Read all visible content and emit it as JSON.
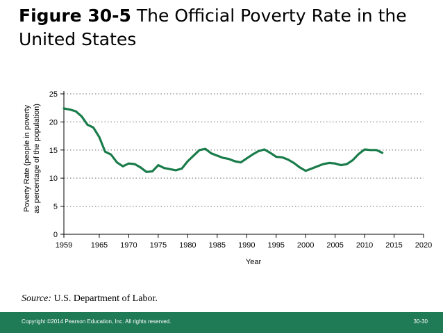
{
  "title": {
    "figure_label": "Figure 30-5",
    "text": "The Official Poverty Rate in the United States"
  },
  "source": {
    "label": "Source:",
    "text": " U.S. Department of Labor."
  },
  "footer": {
    "copyright": "Copyright ©2014 Pearson Education, Inc. All rights reserved.",
    "page": "30-30"
  },
  "colors": {
    "line": "#1a7c4a",
    "grid": "#888888",
    "footer_bg": "#1f7a56"
  },
  "chart_data": {
    "type": "line",
    "title": "The Official Poverty Rate in the United States",
    "xlabel": "Year",
    "ylabel_lines": [
      "Poverty Rate (people in poverty",
      "as percentage of the population)"
    ],
    "xlim": [
      1959,
      2020
    ],
    "ylim": [
      0,
      25
    ],
    "x_ticks": [
      1959,
      1965,
      1970,
      1975,
      1980,
      1985,
      1990,
      1995,
      2000,
      2005,
      2010,
      2015,
      2020
    ],
    "y_ticks": [
      0,
      5,
      10,
      15,
      20,
      25
    ],
    "grid": "horizontal-dotted",
    "series": [
      {
        "name": "Official Poverty Rate",
        "x": [
          1959,
          1960,
          1961,
          1962,
          1963,
          1964,
          1965,
          1966,
          1967,
          1968,
          1969,
          1970,
          1971,
          1972,
          1973,
          1974,
          1975,
          1976,
          1977,
          1978,
          1979,
          1980,
          1981,
          1982,
          1983,
          1984,
          1985,
          1986,
          1987,
          1988,
          1989,
          1990,
          1991,
          1992,
          1993,
          1994,
          1995,
          1996,
          1997,
          1998,
          1999,
          2000,
          2001,
          2002,
          2003,
          2004,
          2005,
          2006,
          2007,
          2008,
          2009,
          2010,
          2011,
          2012,
          2013
        ],
        "y": [
          22.4,
          22.2,
          21.9,
          21.0,
          19.5,
          19.0,
          17.3,
          14.7,
          14.2,
          12.8,
          12.1,
          12.6,
          12.5,
          11.9,
          11.1,
          11.2,
          12.3,
          11.8,
          11.6,
          11.4,
          11.7,
          13.0,
          14.0,
          15.0,
          15.2,
          14.4,
          14.0,
          13.6,
          13.4,
          13.0,
          12.8,
          13.5,
          14.2,
          14.8,
          15.1,
          14.5,
          13.8,
          13.7,
          13.3,
          12.7,
          11.9,
          11.3,
          11.7,
          12.1,
          12.5,
          12.7,
          12.6,
          12.3,
          12.5,
          13.2,
          14.3,
          15.1,
          15.0,
          15.0,
          14.5
        ]
      }
    ]
  }
}
